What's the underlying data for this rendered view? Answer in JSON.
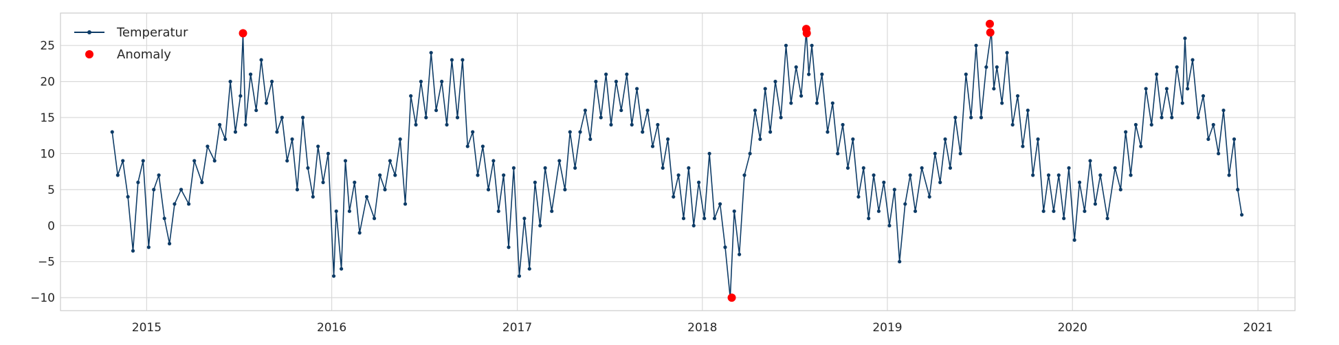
{
  "chart_data": {
    "type": "line",
    "title": "",
    "xlabel": "",
    "ylabel": "",
    "x_type": "date",
    "xlim": [
      "2014-07-15",
      "2021-03-15"
    ],
    "ylim": [
      -11.8,
      29.5
    ],
    "grid": true,
    "legend_position": "top-left",
    "x_ticks": [
      {
        "date": "2015-01-01",
        "label": "2015"
      },
      {
        "date": "2016-01-01",
        "label": "2016"
      },
      {
        "date": "2017-01-01",
        "label": "2017"
      },
      {
        "date": "2018-01-01",
        "label": "2018"
      },
      {
        "date": "2019-01-01",
        "label": "2019"
      },
      {
        "date": "2020-01-01",
        "label": "2020"
      },
      {
        "date": "2021-01-01",
        "label": "2021"
      }
    ],
    "y_ticks": [
      {
        "value": 25,
        "label": "25"
      },
      {
        "value": 20,
        "label": "20"
      },
      {
        "value": 15,
        "label": "15"
      },
      {
        "value": 10,
        "label": "10"
      },
      {
        "value": 5,
        "label": "5"
      },
      {
        "value": 0,
        "label": "0"
      },
      {
        "value": -5,
        "label": "−5"
      },
      {
        "value": -10,
        "label": "−10"
      }
    ],
    "series": [
      {
        "name": "Temperatur",
        "kind": "line-marker",
        "color": "#0d3b66",
        "points": [
          [
            "2014-10-25",
            13
          ],
          [
            "2014-11-05",
            7
          ],
          [
            "2014-11-15",
            9
          ],
          [
            "2014-11-25",
            4
          ],
          [
            "2014-12-05",
            -3.5
          ],
          [
            "2014-12-15",
            6
          ],
          [
            "2014-12-25",
            9
          ],
          [
            "2015-01-05",
            -3
          ],
          [
            "2015-01-15",
            5
          ],
          [
            "2015-01-25",
            7
          ],
          [
            "2015-02-05",
            1
          ],
          [
            "2015-02-15",
            -2.5
          ],
          [
            "2015-02-25",
            3
          ],
          [
            "2015-03-10",
            5
          ],
          [
            "2015-03-25",
            3
          ],
          [
            "2015-04-05",
            9
          ],
          [
            "2015-04-20",
            6
          ],
          [
            "2015-05-01",
            11
          ],
          [
            "2015-05-15",
            9
          ],
          [
            "2015-05-25",
            14
          ],
          [
            "2015-06-05",
            12
          ],
          [
            "2015-06-15",
            20
          ],
          [
            "2015-06-25",
            13
          ],
          [
            "2015-07-05",
            18
          ],
          [
            "2015-07-10",
            26.5
          ],
          [
            "2015-07-15",
            14
          ],
          [
            "2015-07-25",
            21
          ],
          [
            "2015-08-05",
            16
          ],
          [
            "2015-08-15",
            23
          ],
          [
            "2015-08-25",
            17
          ],
          [
            "2015-09-05",
            20
          ],
          [
            "2015-09-15",
            13
          ],
          [
            "2015-09-25",
            15
          ],
          [
            "2015-10-05",
            9
          ],
          [
            "2015-10-15",
            12
          ],
          [
            "2015-10-25",
            5
          ],
          [
            "2015-11-05",
            15
          ],
          [
            "2015-11-15",
            8
          ],
          [
            "2015-11-25",
            4
          ],
          [
            "2015-12-05",
            11
          ],
          [
            "2015-12-15",
            6
          ],
          [
            "2015-12-25",
            10
          ],
          [
            "2016-01-05",
            -7
          ],
          [
            "2016-01-10",
            2
          ],
          [
            "2016-01-20",
            -6
          ],
          [
            "2016-01-28",
            9
          ],
          [
            "2016-02-05",
            2
          ],
          [
            "2016-02-15",
            6
          ],
          [
            "2016-02-25",
            -1
          ],
          [
            "2016-03-10",
            4
          ],
          [
            "2016-03-25",
            1
          ],
          [
            "2016-04-05",
            7
          ],
          [
            "2016-04-15",
            5
          ],
          [
            "2016-04-25",
            9
          ],
          [
            "2016-05-05",
            7
          ],
          [
            "2016-05-15",
            12
          ],
          [
            "2016-05-25",
            3
          ],
          [
            "2016-06-05",
            18
          ],
          [
            "2016-06-15",
            14
          ],
          [
            "2016-06-25",
            20
          ],
          [
            "2016-07-05",
            15
          ],
          [
            "2016-07-15",
            24
          ],
          [
            "2016-07-25",
            16
          ],
          [
            "2016-08-05",
            20
          ],
          [
            "2016-08-15",
            14
          ],
          [
            "2016-08-25",
            23
          ],
          [
            "2016-09-05",
            15
          ],
          [
            "2016-09-15",
            23
          ],
          [
            "2016-09-25",
            11
          ],
          [
            "2016-10-05",
            13
          ],
          [
            "2016-10-15",
            7
          ],
          [
            "2016-10-25",
            11
          ],
          [
            "2016-11-05",
            5
          ],
          [
            "2016-11-15",
            9
          ],
          [
            "2016-11-25",
            2
          ],
          [
            "2016-12-05",
            7
          ],
          [
            "2016-12-15",
            -3
          ],
          [
            "2016-12-25",
            8
          ],
          [
            "2017-01-05",
            -7
          ],
          [
            "2017-01-15",
            1
          ],
          [
            "2017-01-25",
            -6
          ],
          [
            "2017-02-05",
            6
          ],
          [
            "2017-02-15",
            0
          ],
          [
            "2017-02-25",
            8
          ],
          [
            "2017-03-10",
            2
          ],
          [
            "2017-03-25",
            9
          ],
          [
            "2017-04-05",
            5
          ],
          [
            "2017-04-15",
            13
          ],
          [
            "2017-04-25",
            8
          ],
          [
            "2017-05-05",
            13
          ],
          [
            "2017-05-15",
            16
          ],
          [
            "2017-05-25",
            12
          ],
          [
            "2017-06-05",
            20
          ],
          [
            "2017-06-15",
            15
          ],
          [
            "2017-06-25",
            21
          ],
          [
            "2017-07-05",
            14
          ],
          [
            "2017-07-15",
            20
          ],
          [
            "2017-07-25",
            16
          ],
          [
            "2017-08-05",
            21
          ],
          [
            "2017-08-15",
            14
          ],
          [
            "2017-08-25",
            19
          ],
          [
            "2017-09-05",
            13
          ],
          [
            "2017-09-15",
            16
          ],
          [
            "2017-09-25",
            11
          ],
          [
            "2017-10-05",
            14
          ],
          [
            "2017-10-15",
            8
          ],
          [
            "2017-10-25",
            12
          ],
          [
            "2017-11-05",
            4
          ],
          [
            "2017-11-15",
            7
          ],
          [
            "2017-11-25",
            1
          ],
          [
            "2017-12-05",
            8
          ],
          [
            "2017-12-15",
            0
          ],
          [
            "2017-12-25",
            6
          ],
          [
            "2018-01-05",
            1
          ],
          [
            "2018-01-15",
            10
          ],
          [
            "2018-01-25",
            1
          ],
          [
            "2018-02-05",
            3
          ],
          [
            "2018-02-15",
            -3
          ],
          [
            "2018-02-25",
            -10
          ],
          [
            "2018-03-05",
            2
          ],
          [
            "2018-03-15",
            -4
          ],
          [
            "2018-03-25",
            7
          ],
          [
            "2018-04-05",
            10
          ],
          [
            "2018-04-15",
            16
          ],
          [
            "2018-04-25",
            12
          ],
          [
            "2018-05-05",
            19
          ],
          [
            "2018-05-15",
            13
          ],
          [
            "2018-05-25",
            20
          ],
          [
            "2018-06-05",
            15
          ],
          [
            "2018-06-15",
            25
          ],
          [
            "2018-06-25",
            17
          ],
          [
            "2018-07-05",
            22
          ],
          [
            "2018-07-15",
            18
          ],
          [
            "2018-07-25",
            27
          ],
          [
            "2018-07-30",
            21
          ],
          [
            "2018-08-05",
            25
          ],
          [
            "2018-08-15",
            17
          ],
          [
            "2018-08-25",
            21
          ],
          [
            "2018-09-05",
            13
          ],
          [
            "2018-09-15",
            17
          ],
          [
            "2018-09-25",
            10
          ],
          [
            "2018-10-05",
            14
          ],
          [
            "2018-10-15",
            8
          ],
          [
            "2018-10-25",
            12
          ],
          [
            "2018-11-05",
            4
          ],
          [
            "2018-11-15",
            8
          ],
          [
            "2018-11-25",
            1
          ],
          [
            "2018-12-05",
            7
          ],
          [
            "2018-12-15",
            2
          ],
          [
            "2018-12-25",
            6
          ],
          [
            "2019-01-05",
            0
          ],
          [
            "2019-01-15",
            5
          ],
          [
            "2019-01-25",
            -5
          ],
          [
            "2019-02-05",
            3
          ],
          [
            "2019-02-15",
            7
          ],
          [
            "2019-02-25",
            2
          ],
          [
            "2019-03-10",
            8
          ],
          [
            "2019-03-25",
            4
          ],
          [
            "2019-04-05",
            10
          ],
          [
            "2019-04-15",
            6
          ],
          [
            "2019-04-25",
            12
          ],
          [
            "2019-05-05",
            8
          ],
          [
            "2019-05-15",
            15
          ],
          [
            "2019-05-25",
            10
          ],
          [
            "2019-06-05",
            21
          ],
          [
            "2019-06-15",
            15
          ],
          [
            "2019-06-25",
            25
          ],
          [
            "2019-07-05",
            15
          ],
          [
            "2019-07-15",
            22
          ],
          [
            "2019-07-25",
            27
          ],
          [
            "2019-07-30",
            19
          ],
          [
            "2019-08-05",
            22
          ],
          [
            "2019-08-15",
            17
          ],
          [
            "2019-08-25",
            24
          ],
          [
            "2019-09-05",
            14
          ],
          [
            "2019-09-15",
            18
          ],
          [
            "2019-09-25",
            11
          ],
          [
            "2019-10-05",
            16
          ],
          [
            "2019-10-15",
            7
          ],
          [
            "2019-10-25",
            12
          ],
          [
            "2019-11-05",
            2
          ],
          [
            "2019-11-15",
            7
          ],
          [
            "2019-11-25",
            2
          ],
          [
            "2019-12-05",
            7
          ],
          [
            "2019-12-15",
            1
          ],
          [
            "2019-12-25",
            8
          ],
          [
            "2020-01-05",
            -2
          ],
          [
            "2020-01-15",
            6
          ],
          [
            "2020-01-25",
            2
          ],
          [
            "2020-02-05",
            9
          ],
          [
            "2020-02-15",
            3
          ],
          [
            "2020-02-25",
            7
          ],
          [
            "2020-03-10",
            1
          ],
          [
            "2020-03-25",
            8
          ],
          [
            "2020-04-05",
            5
          ],
          [
            "2020-04-15",
            13
          ],
          [
            "2020-04-25",
            7
          ],
          [
            "2020-05-05",
            14
          ],
          [
            "2020-05-15",
            11
          ],
          [
            "2020-05-25",
            19
          ],
          [
            "2020-06-05",
            14
          ],
          [
            "2020-06-15",
            21
          ],
          [
            "2020-06-25",
            15
          ],
          [
            "2020-07-05",
            19
          ],
          [
            "2020-07-15",
            15
          ],
          [
            "2020-07-25",
            22
          ],
          [
            "2020-08-05",
            17
          ],
          [
            "2020-08-10",
            26
          ],
          [
            "2020-08-15",
            19
          ],
          [
            "2020-08-25",
            23
          ],
          [
            "2020-09-05",
            15
          ],
          [
            "2020-09-15",
            18
          ],
          [
            "2020-09-25",
            12
          ],
          [
            "2020-10-05",
            14
          ],
          [
            "2020-10-15",
            10
          ],
          [
            "2020-10-25",
            16
          ],
          [
            "2020-11-05",
            7
          ],
          [
            "2020-11-15",
            12
          ],
          [
            "2020-11-22",
            5
          ],
          [
            "2020-11-30",
            1.5
          ]
        ]
      },
      {
        "name": "Anomaly",
        "kind": "scatter",
        "color": "#ff0000",
        "points": [
          [
            "2015-07-10",
            26.7
          ],
          [
            "2018-02-28",
            -10.0
          ],
          [
            "2018-07-25",
            27.3
          ],
          [
            "2018-07-26",
            26.7
          ],
          [
            "2019-07-22",
            28.0
          ],
          [
            "2019-07-23",
            26.8
          ]
        ]
      }
    ]
  }
}
